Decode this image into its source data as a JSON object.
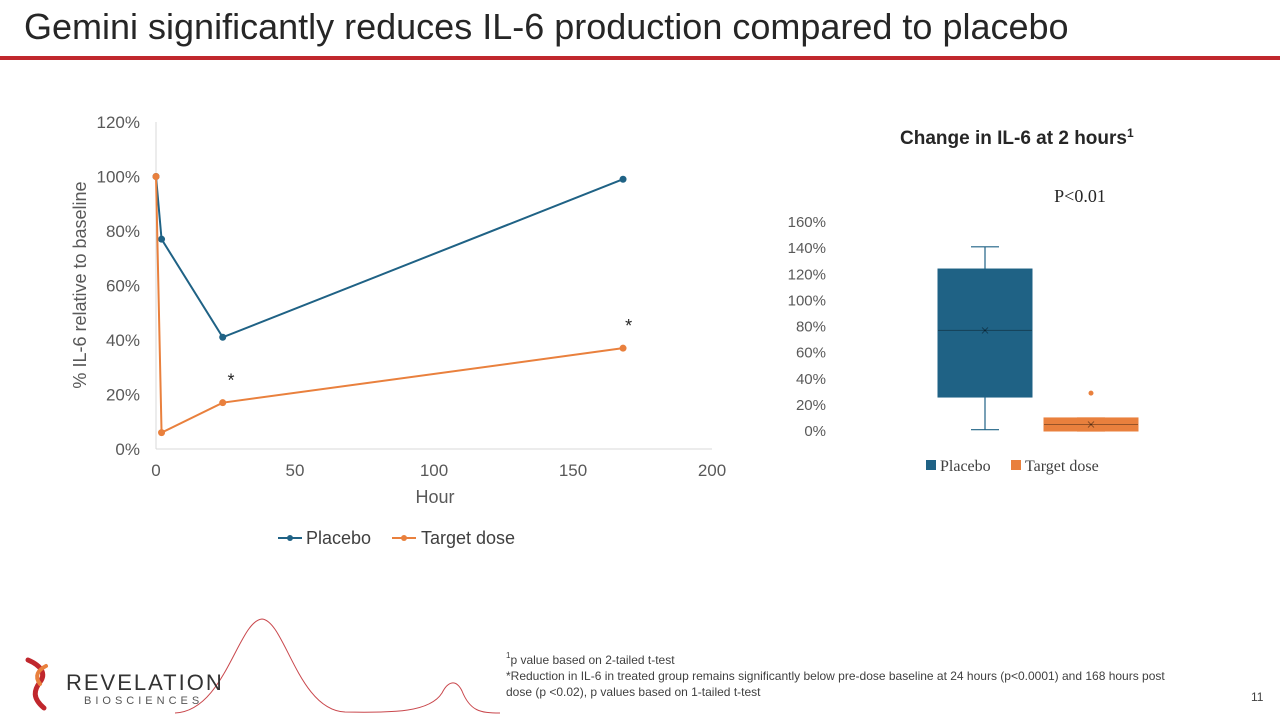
{
  "slide": {
    "title": "Gemini significantly reduces IL-6 production compared to placebo",
    "page_number": "11",
    "footnote_1_sup": "1",
    "footnote_1": "p value based on 2-tailed t-test",
    "footnote_2": "*Reduction in IL-6 in treated group remains significantly below pre-dose baseline at 24 hours (p<0.0001) and 168 hours post dose (p <0.02), p values based on 1-tailed t-test"
  },
  "logo": {
    "name": "REVELATION",
    "sub": "BIOSCIENCES"
  },
  "colors": {
    "placebo": "#1f6285",
    "target": "#e9803d",
    "title_rule": "#c0272d",
    "decor_line": "#c0272d"
  },
  "chart_data": [
    {
      "type": "line",
      "title": "",
      "xlabel": "Hour",
      "ylabel": "%  IL-6 relative to baseline",
      "xlim": [
        0,
        200
      ],
      "ylim": [
        0,
        1.2
      ],
      "xticks": [
        "0",
        "50",
        "100",
        "150",
        "200"
      ],
      "yticks": [
        "0%",
        "20%",
        "40%",
        "60%",
        "80%",
        "100%",
        "120%"
      ],
      "series": [
        {
          "name": "Placebo",
          "x": [
            0,
            2,
            24,
            168
          ],
          "y": [
            1.0,
            0.77,
            0.41,
            0.99
          ]
        },
        {
          "name": "Target dose",
          "x": [
            0,
            2,
            24,
            168
          ],
          "y": [
            1.0,
            0.06,
            0.17,
            0.37
          ]
        }
      ],
      "annotations": [
        {
          "text": "*",
          "x": 27,
          "y": 0.23
        },
        {
          "text": "*",
          "x": 170,
          "y": 0.43
        }
      ],
      "legend": "bottom",
      "grid": false
    },
    {
      "type": "box",
      "title": "Change in IL-6 at 2 hours",
      "title_sup": "1",
      "annotation": "P<0.01",
      "ylim": [
        0,
        1.6
      ],
      "yticks": [
        "0%",
        "20%",
        "40%",
        "60%",
        "80%",
        "100%",
        "120%",
        "140%",
        "160%"
      ],
      "series": [
        {
          "name": "Placebo",
          "min": 0.01,
          "q1": 0.26,
          "median": 0.77,
          "mean": 0.77,
          "q3": 1.24,
          "max": 1.41,
          "outliers": []
        },
        {
          "name": "Target dose",
          "min": 0.0,
          "q1": 0.0,
          "median": 0.05,
          "mean": 0.05,
          "q3": 0.1,
          "max": 0.1,
          "outliers": [
            0.29
          ]
        }
      ],
      "legend": "bottom",
      "grid": false
    }
  ]
}
